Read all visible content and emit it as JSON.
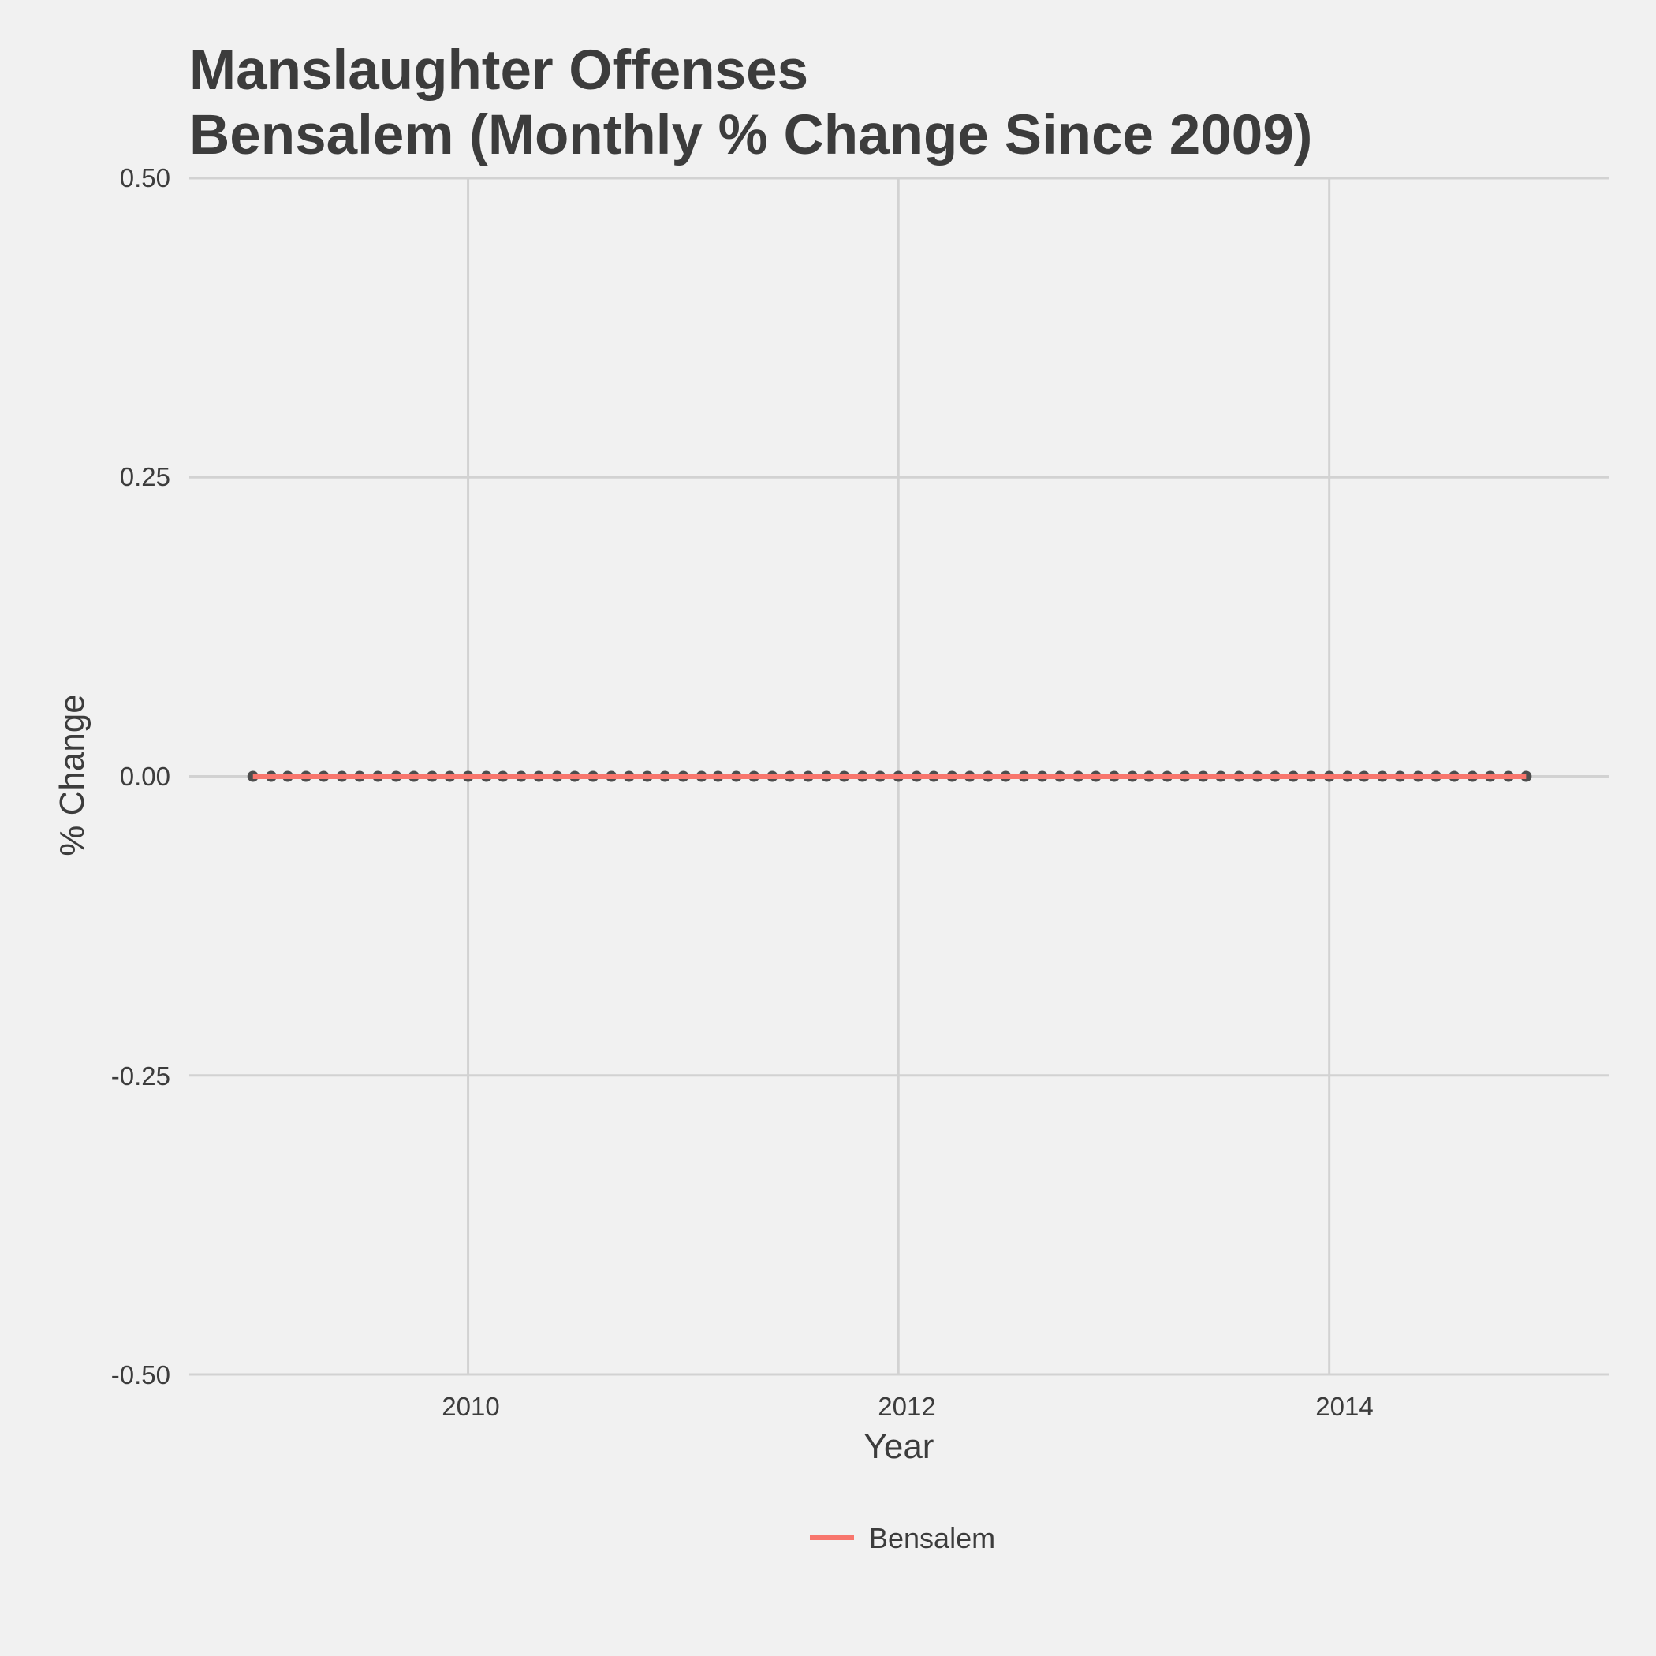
{
  "chart_data": {
    "type": "line",
    "title_line1": "Manslaughter Offenses",
    "title_line2": "Bensalem (Monthly % Change Since 2009)",
    "xlabel": "Year",
    "ylabel": "% Change",
    "x_ticks": [
      "2010",
      "2012",
      "2014"
    ],
    "y_ticks": [
      "-0.50",
      "-0.25",
      "0.00",
      "0.25",
      "0.50"
    ],
    "ylim": [
      -0.5,
      0.5
    ],
    "xlim": [
      "2008-09-15",
      "2015-04-20"
    ],
    "grid": true,
    "legend_position": "bottom",
    "x_start": "2009-01",
    "x_end": "2014-12",
    "series": [
      {
        "name": "Bensalem",
        "color": "#f8766d",
        "point_color": "#4d4d4d",
        "values": [
          0,
          0,
          0,
          0,
          0,
          0,
          0,
          0,
          0,
          0,
          0,
          0,
          0,
          0,
          0,
          0,
          0,
          0,
          0,
          0,
          0,
          0,
          0,
          0,
          0,
          0,
          0,
          0,
          0,
          0,
          0,
          0,
          0,
          0,
          0,
          0,
          0,
          0,
          0,
          0,
          0,
          0,
          0,
          0,
          0,
          0,
          0,
          0,
          0,
          0,
          0,
          0,
          0,
          0,
          0,
          0,
          0,
          0,
          0,
          0,
          0,
          0,
          0,
          0,
          0,
          0,
          0,
          0,
          0,
          0,
          0,
          0
        ]
      }
    ]
  }
}
